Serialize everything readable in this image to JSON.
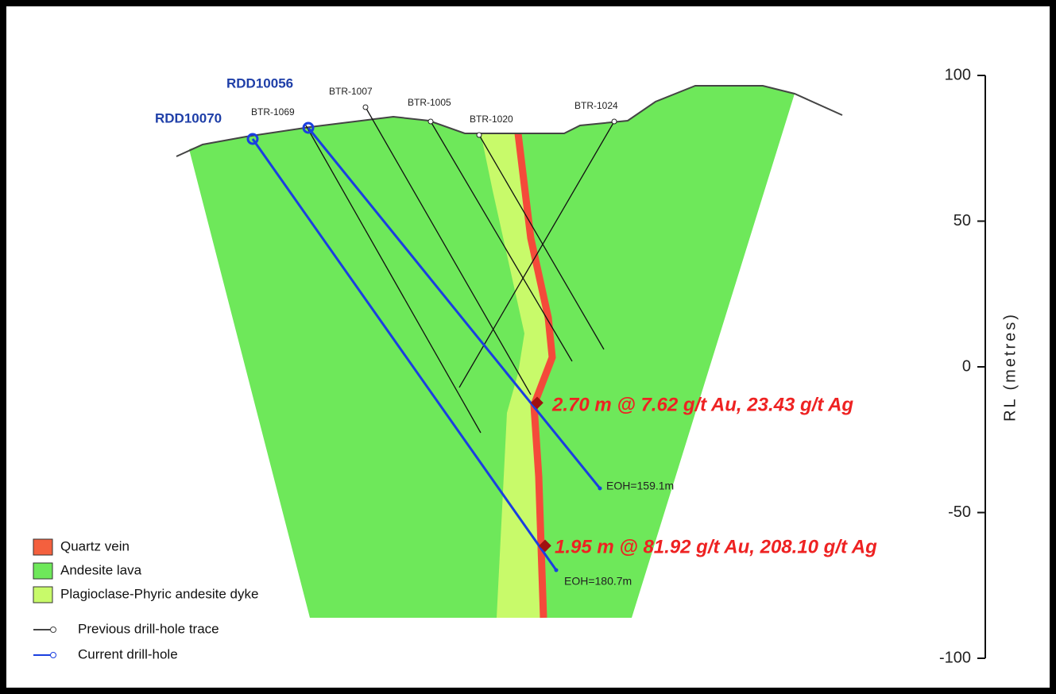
{
  "axis": {
    "label": "RL (metres)",
    "lim": [
      -100,
      100
    ],
    "ticks": [
      100,
      50,
      0,
      -50,
      -100
    ]
  },
  "current_holes": [
    {
      "name": "RDD10056",
      "eoh": "EOH=159.1m",
      "intercept": "2.70 m @ 7.62 g/t Au, 23.43 g/t Ag"
    },
    {
      "name": "RDD10070",
      "eoh": "EOH=180.7m",
      "intercept": "1.95 m @ 81.92 g/t Au, 208.10 g/t Ag"
    }
  ],
  "previous_holes": [
    "BTR-1069",
    "BTR-1007",
    "BTR-1005",
    "BTR-1020",
    "BTR-1024"
  ],
  "legend": [
    "Quartz vein",
    "Andesite lava",
    "Plagioclase-Phyric andesite dyke",
    "Previous drill-hole trace",
    "Current drill-hole"
  ]
}
